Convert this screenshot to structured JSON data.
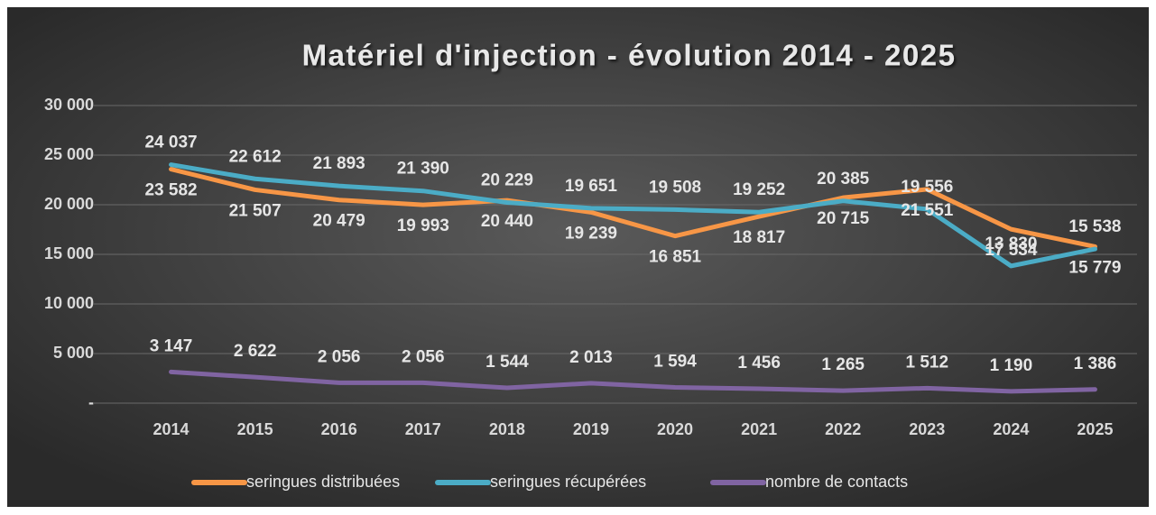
{
  "chart_data": {
    "type": "line",
    "title": "Matériel d'injection - évolution 2014 - 2025",
    "categories": [
      "2014",
      "2015",
      "2016",
      "2017",
      "2018",
      "2019",
      "2020",
      "2021",
      "2022",
      "2023",
      "2024",
      "2025"
    ],
    "series": [
      {
        "name": "seringues distribuées",
        "color": "#f79646",
        "values": [
          23582,
          21507,
          20479,
          19993,
          20440,
          19239,
          16851,
          18817,
          20715,
          21551,
          17534,
          15779
        ],
        "value_labels": [
          "23 582",
          "21 507",
          "20 479",
          "19 993",
          "20 440",
          "19 239",
          "16 851",
          "18 817",
          "20 715",
          "21 551",
          "17 534",
          "15 779"
        ]
      },
      {
        "name": "seringues récupérées",
        "color": "#4bacc6",
        "values": [
          24037,
          22612,
          21893,
          21390,
          20229,
          19651,
          19508,
          19252,
          20385,
          19556,
          13830,
          15538
        ],
        "value_labels": [
          "24 037",
          "22 612",
          "21 893",
          "21 390",
          "20 229",
          "19 651",
          "19 508",
          "19 252",
          "20 385",
          "19 556",
          "13 830",
          "15 538"
        ]
      },
      {
        "name": "nombre de contacts",
        "color": "#8064a2",
        "values": [
          3147,
          2622,
          2056,
          2056,
          1544,
          2013,
          1594,
          1456,
          1265,
          1512,
          1190,
          1386
        ],
        "value_labels": [
          "3 147",
          "2 622",
          "2 056",
          "2 056",
          "1 544",
          "2 013",
          "1 594",
          "1 456",
          "1 265",
          "1 512",
          "1 190",
          "1 386"
        ]
      }
    ],
    "ylim": [
      0,
      30000
    ],
    "yticks": [
      {
        "value": 0,
        "label": "-"
      },
      {
        "value": 5000,
        "label": "5 000"
      },
      {
        "value": 10000,
        "label": "10 000"
      },
      {
        "value": 15000,
        "label": "15 000"
      },
      {
        "value": 20000,
        "label": "20 000"
      },
      {
        "value": 25000,
        "label": "25 000"
      },
      {
        "value": 30000,
        "label": "30 000"
      }
    ],
    "grid": true,
    "legend": "bottom"
  }
}
